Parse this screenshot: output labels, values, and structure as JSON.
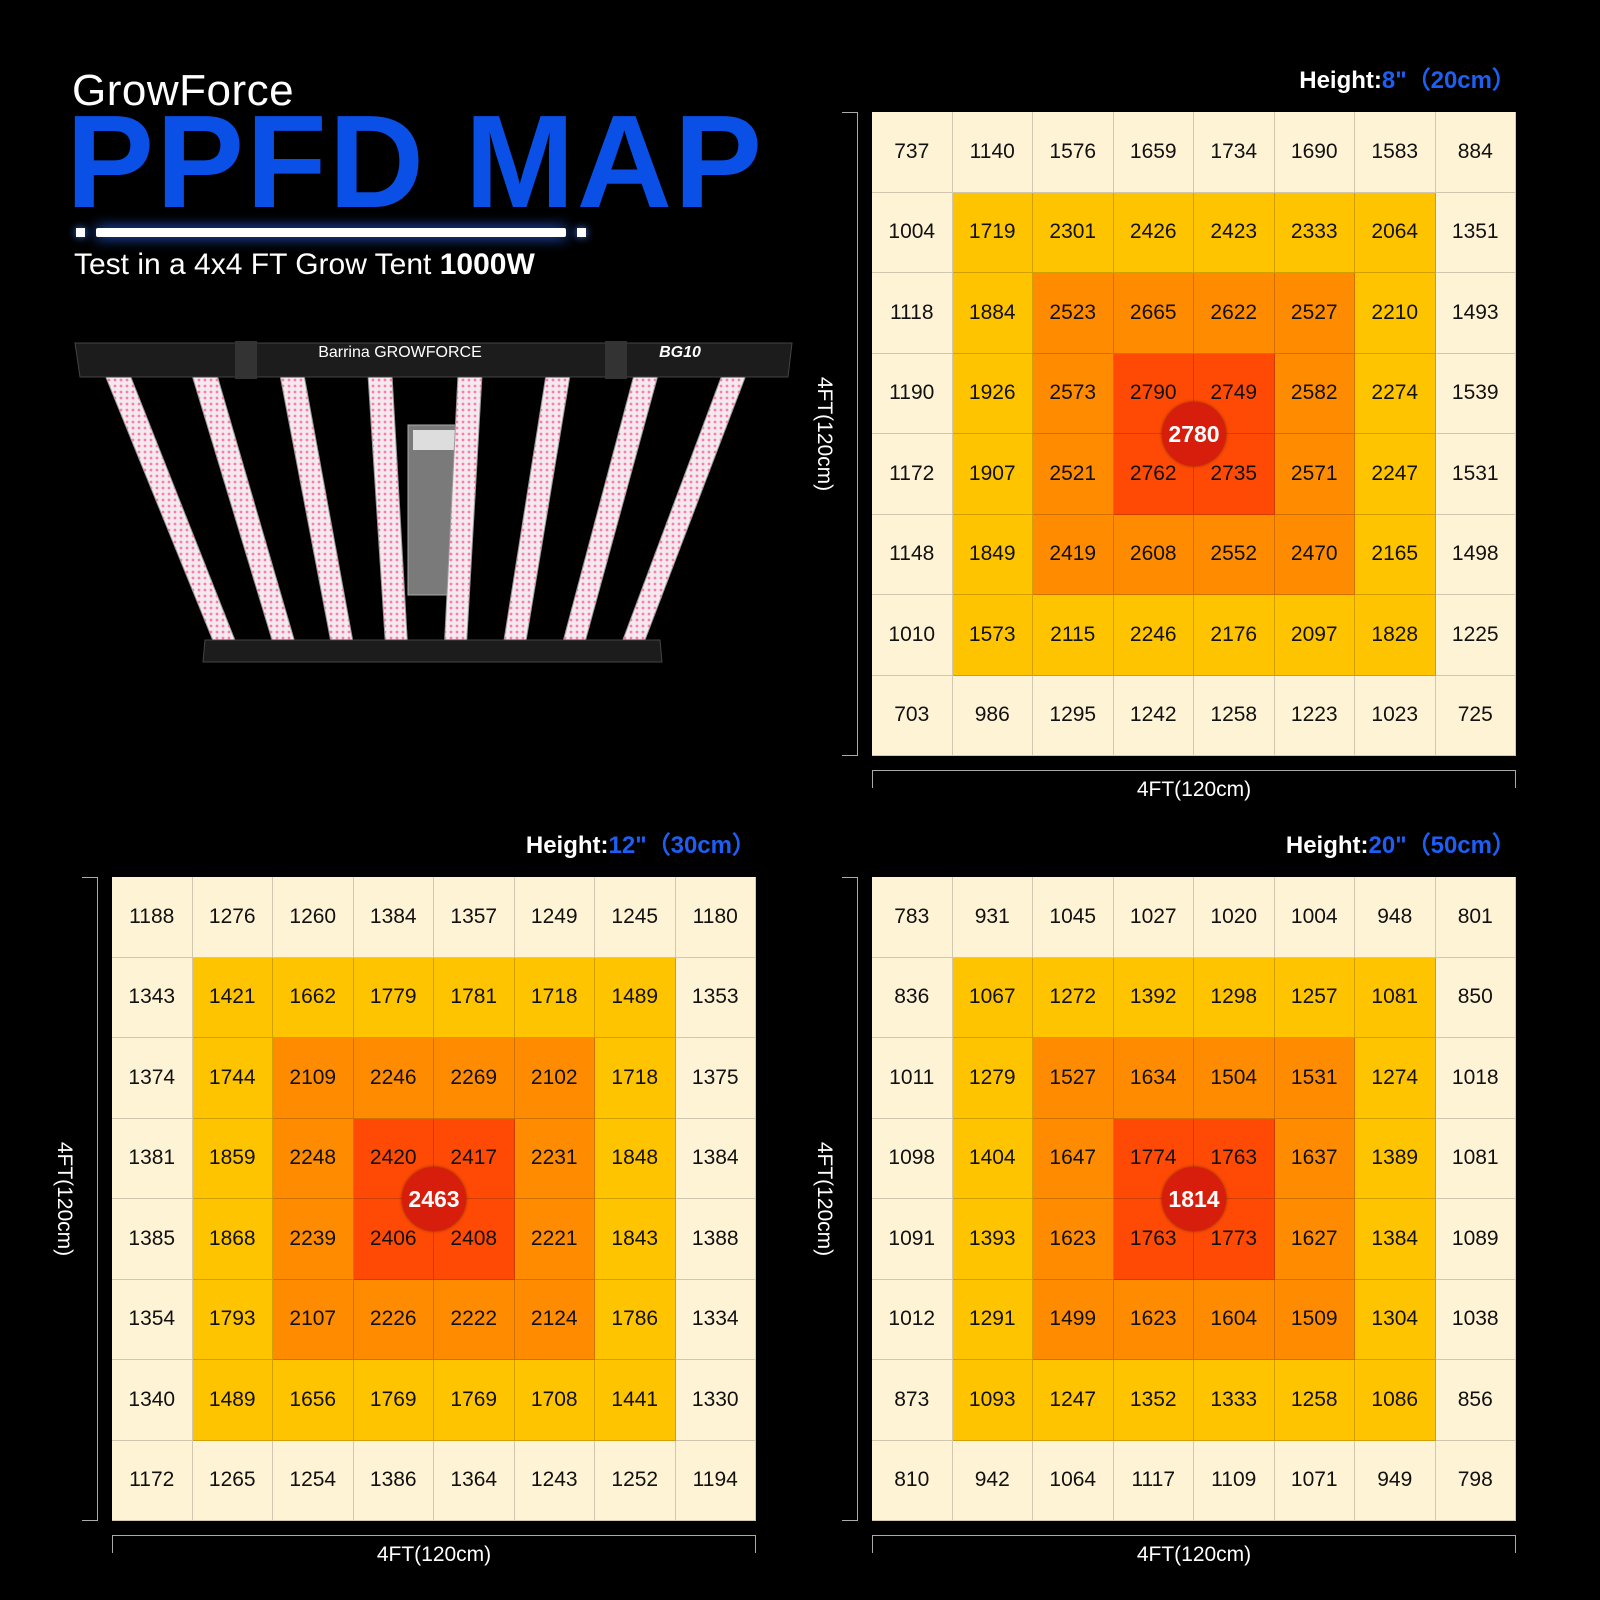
{
  "header": {
    "brand": "GrowForce",
    "title": "PPFD MAP",
    "subtitle_prefix": "Test in a 4x4 FT Grow Tent ",
    "subtitle_bold": "1000W"
  },
  "fixture": {
    "brand_label": "Barrina GROWFORCE",
    "model_label": "BG10"
  },
  "maps": [
    {
      "height_label": "Height:",
      "height_value": "8\"（20cm）",
      "side_label": "4FT(120cm)",
      "bottom_label": "4FT(120cm)",
      "center_value": "2780",
      "rows": [
        [
          "737",
          "1140",
          "1576",
          "1659",
          "1734",
          "1690",
          "1583",
          "884"
        ],
        [
          "1004",
          "1719",
          "2301",
          "2426",
          "2423",
          "2333",
          "2064",
          "1351"
        ],
        [
          "1118",
          "1884",
          "2523",
          "2665",
          "2622",
          "2527",
          "2210",
          "1493"
        ],
        [
          "1190",
          "1926",
          "2573",
          "2790",
          "2749",
          "2582",
          "2274",
          "1539"
        ],
        [
          "1172",
          "1907",
          "2521",
          "2762",
          "2735",
          "2571",
          "2247",
          "1531"
        ],
        [
          "1148",
          "1849",
          "2419",
          "2608",
          "2552",
          "2470",
          "2165",
          "1498"
        ],
        [
          "1010",
          "1573",
          "2115",
          "2246",
          "2176",
          "2097",
          "1828",
          "1225"
        ],
        [
          "703",
          "986",
          "1295",
          "1242",
          "1258",
          "1223",
          "1023",
          "725"
        ]
      ]
    },
    {
      "height_label": "Height:",
      "height_value": "12\"（30cm）",
      "side_label": "4FT(120cm)",
      "bottom_label": "4FT(120cm)",
      "center_value": "2463",
      "rows": [
        [
          "1188",
          "1276",
          "1260",
          "1384",
          "1357",
          "1249",
          "1245",
          "1180"
        ],
        [
          "1343",
          "1421",
          "1662",
          "1779",
          "1781",
          "1718",
          "1489",
          "1353"
        ],
        [
          "1374",
          "1744",
          "2109",
          "2246",
          "2269",
          "2102",
          "1718",
          "1375"
        ],
        [
          "1381",
          "1859",
          "2248",
          "2420",
          "2417",
          "2231",
          "1848",
          "1384"
        ],
        [
          "1385",
          "1868",
          "2239",
          "2406",
          "2408",
          "2221",
          "1843",
          "1388"
        ],
        [
          "1354",
          "1793",
          "2107",
          "2226",
          "2222",
          "2124",
          "1786",
          "1334"
        ],
        [
          "1340",
          "1489",
          "1656",
          "1769",
          "1769",
          "1708",
          "1441",
          "1330"
        ],
        [
          "1172",
          "1265",
          "1254",
          "1386",
          "1364",
          "1243",
          "1252",
          "1194"
        ]
      ]
    },
    {
      "height_label": "Height:",
      "height_value": "20\"（50cm）",
      "side_label": "4FT(120cm)",
      "bottom_label": "4FT(120cm)",
      "center_value": "1814",
      "rows": [
        [
          "783",
          "931",
          "1045",
          "1027",
          "1020",
          "1004",
          "948",
          "801"
        ],
        [
          "836",
          "1067",
          "1272",
          "1392",
          "1298",
          "1257",
          "1081",
          "850"
        ],
        [
          "1011",
          "1279",
          "1527",
          "1634",
          "1504",
          "1531",
          "1274",
          "1018"
        ],
        [
          "1098",
          "1404",
          "1647",
          "1774",
          "1763",
          "1637",
          "1389",
          "1081"
        ],
        [
          "1091",
          "1393",
          "1623",
          "1763",
          "1773",
          "1627",
          "1384",
          "1089"
        ],
        [
          "1012",
          "1291",
          "1499",
          "1623",
          "1604",
          "1509",
          "1304",
          "1038"
        ],
        [
          "873",
          "1093",
          "1247",
          "1352",
          "1333",
          "1258",
          "1086",
          "856"
        ],
        [
          "810",
          "942",
          "1064",
          "1117",
          "1109",
          "1071",
          "949",
          "798"
        ]
      ]
    }
  ],
  "colors": {
    "title_blue": "#0a4fe6",
    "height_blue": "#1f5ef2",
    "band_outer": "#fff3d6",
    "band_2": "#ffc400",
    "band_3": "#ff8c00",
    "band_center": "#ff4a05",
    "center_circle": "#d71d0c"
  }
}
